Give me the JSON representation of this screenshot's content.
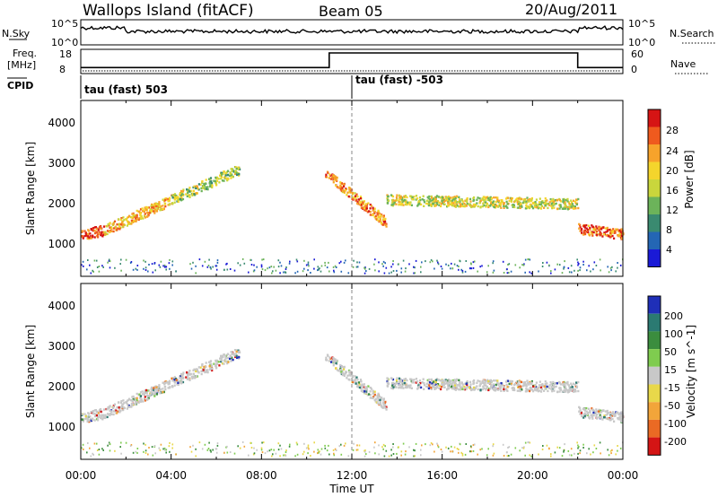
{
  "header": {
    "site": "Wallops Island (fitACF)",
    "beam": "Beam 05",
    "date": "20/Aug/2011"
  },
  "noise_panel": {
    "left_label": "N.Sky",
    "right_label": "N.Search",
    "left_ticks": [
      "10^5",
      "10^0"
    ],
    "right_ticks": [
      "10^5",
      "10^0"
    ]
  },
  "freq_panel": {
    "left_label_1": "Freq.",
    "left_label_2": "[MHz]",
    "right_label": "Nave",
    "left_ticks": [
      "18",
      "8"
    ],
    "right_ticks": [
      "60",
      "0"
    ]
  },
  "cpid_panel": {
    "label": "CPID",
    "segments": [
      {
        "text": "tau (fast) 503",
        "start_hour": 0
      },
      {
        "text": "tau (fast) -503",
        "start_hour": 12
      }
    ]
  },
  "xaxis": {
    "label": "Time UT",
    "ticks": [
      "00:00",
      "04:00",
      "08:00",
      "12:00",
      "16:00",
      "20:00",
      "00:00"
    ]
  },
  "power_panel": {
    "ylabel": "Slant Range [km]",
    "yticks": [
      "1000",
      "2000",
      "3000",
      "4000"
    ],
    "colorbar_label": "Power [dB]",
    "colorbar_ticks": [
      "28",
      "24",
      "20",
      "16",
      "12",
      "8",
      "4"
    ],
    "colors": [
      "#1a1ad6",
      "#2466b4",
      "#3a8a70",
      "#6cb35a",
      "#c9d63c",
      "#f4d52c",
      "#f7a32b",
      "#ef5a1e",
      "#d61414"
    ]
  },
  "velocity_panel": {
    "ylabel": "Slant Range [km]",
    "yticks": [
      "1000",
      "2000",
      "3000",
      "4000"
    ],
    "colorbar_label": "Velocity [m s^-1]",
    "colorbar_ticks": [
      "200",
      "100",
      "50",
      "15",
      "-15",
      "-50",
      "-100",
      "-200"
    ],
    "colors": [
      "#1f2fb8",
      "#2b7a72",
      "#3b8d3e",
      "#7fcc4f",
      "#c8c8c8",
      "#e8d84a",
      "#f2a53a",
      "#ea6a24",
      "#d41515"
    ]
  },
  "chart_data": {
    "type": "heatmap",
    "title": "Wallops Island (fitACF) Beam 05 20/Aug/2011",
    "xlabel": "Time UT",
    "ylabel": "Slant Range [km]",
    "xlim": [
      0,
      24
    ],
    "ylim": [
      180,
      4500
    ],
    "echo_bands": [
      {
        "t_start": 0.0,
        "t_end": 1.0,
        "range_start": 1200,
        "range_end": 1300,
        "power_db": 26
      },
      {
        "t_start": 1.0,
        "t_end": 4.0,
        "range_start": 1300,
        "range_end": 2050,
        "power_db": 20
      },
      {
        "t_start": 4.0,
        "t_end": 7.0,
        "range_start": 2050,
        "range_end": 2800,
        "power_db": 14
      },
      {
        "t_start": 10.8,
        "t_end": 13.5,
        "range_start": 2700,
        "range_end": 1500,
        "power_db": 22
      },
      {
        "t_start": 13.5,
        "t_end": 22.0,
        "range_start": 2050,
        "range_end": 1950,
        "power_db": 16
      },
      {
        "t_start": 22.0,
        "t_end": 24.0,
        "range_start": 1350,
        "range_end": 1200,
        "power_db": 24
      }
    ],
    "frequency_step": {
      "before_mhz": 10.5,
      "after_mhz": 16.5,
      "step_start_hour": 11.0,
      "step_end_hour": 22.0
    }
  }
}
